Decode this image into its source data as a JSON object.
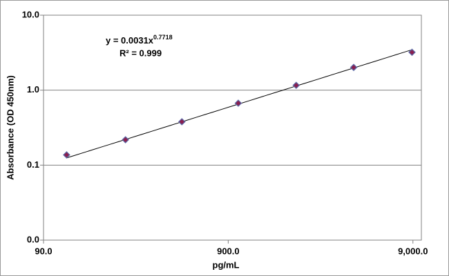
{
  "chart_data": {
    "type": "scatter",
    "xlabel": "pg/mL",
    "ylabel": "Absorbance  (OD 450nm)",
    "equation": {
      "text": "y = 0.0031x",
      "exponent": "0.7718"
    },
    "r_squared": "R² = 0.999",
    "trendline": {
      "coefficient": 0.0031,
      "exponent": 0.7718
    },
    "x": [
      120,
      250,
      505,
      1020,
      2100,
      4300,
      8900
    ],
    "series": [
      {
        "color": "#8b1f4f",
        "values": [
          0.137,
          0.218,
          0.379,
          0.67,
          1.16,
          2.01,
          3.2
        ]
      }
    ],
    "xlog": true,
    "ylog": true,
    "xlim": [
      90,
      10000
    ],
    "ylim": [
      0.01,
      10
    ],
    "xticks": [
      {
        "value": 90,
        "label": "90.0"
      },
      {
        "value": 900,
        "label": "900.0"
      },
      {
        "value": 9000,
        "label": "9,000.0"
      }
    ],
    "yticks": [
      {
        "value": 0.01,
        "label": "0.0"
      },
      0.1,
      {
        "value": 1,
        "label": "1.0"
      },
      {
        "value": 10,
        "label": "10.0"
      }
    ],
    "grid": true
  }
}
